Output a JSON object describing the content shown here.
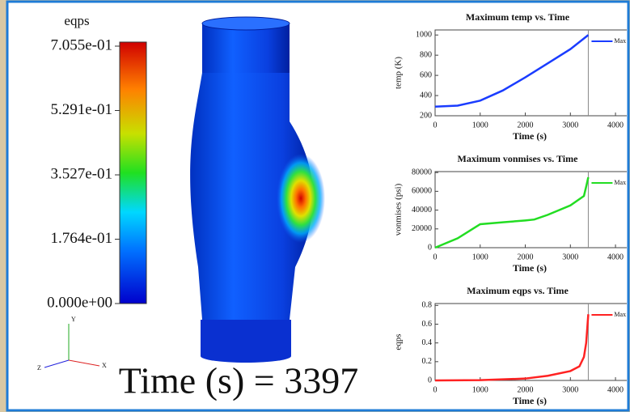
{
  "colorbar": {
    "title": "eqps",
    "lim": [
      0,
      0.7055
    ],
    "ticks": [
      {
        "value": 0.7055,
        "label": "7.055e-01"
      },
      {
        "value": 0.5291,
        "label": "5.291e-01"
      },
      {
        "value": 0.3527,
        "label": "3.527e-01"
      },
      {
        "value": 0.1764,
        "label": "1.764e-01"
      },
      {
        "value": 0,
        "label": "0.000e+00"
      }
    ]
  },
  "triad": {
    "x": "X",
    "y": "Y",
    "z": "Z"
  },
  "time_label": "Time (s) = 3397",
  "chart_data": [
    {
      "type": "line",
      "title": "Maximum temp vs. Time",
      "x_label": "Time (s)",
      "y_label": "temp (K)",
      "xlim": [
        0,
        4250
      ],
      "ylim": [
        200,
        1050
      ],
      "xticks": [
        0,
        1000,
        2000,
        3000,
        4000
      ],
      "yticks": [
        200,
        400,
        600,
        800,
        1000
      ],
      "marker_time": 3397,
      "x": [
        0,
        500,
        1000,
        1500,
        2000,
        2500,
        3000,
        3397
      ],
      "series": [
        {
          "name": "Max",
          "color": "#1a3cff",
          "values": [
            290,
            300,
            350,
            450,
            580,
            720,
            860,
            1000
          ]
        }
      ]
    },
    {
      "type": "line",
      "title": "Maximum vonmises vs. Time",
      "x_label": "Time (s)",
      "y_label": "vonmises (psi)",
      "xlim": [
        0,
        4250
      ],
      "ylim": [
        0,
        81000
      ],
      "xticks": [
        0,
        1000,
        2000,
        3000,
        4000
      ],
      "yticks": [
        0,
        20000,
        40000,
        60000,
        80000
      ],
      "marker_time": 3397,
      "x": [
        0,
        500,
        900,
        1000,
        1500,
        2000,
        2200,
        2500,
        3000,
        3300,
        3350,
        3397
      ],
      "series": [
        {
          "name": "Max",
          "color": "#22dd22",
          "values": [
            0,
            10000,
            22000,
            25000,
            27000,
            29000,
            30000,
            35000,
            45000,
            55000,
            65000,
            75000
          ]
        }
      ]
    },
    {
      "type": "line",
      "title": "Maximum eqps vs. Time",
      "x_label": "Time (s)",
      "y_label": "eqps",
      "xlim": [
        0,
        4250
      ],
      "ylim": [
        0,
        0.82
      ],
      "xticks": [
        0,
        1000,
        2000,
        3000,
        4000
      ],
      "yticks": [
        0,
        0.2,
        0.4,
        0.6,
        0.8
      ],
      "marker_time": 3397,
      "x": [
        0,
        1000,
        2000,
        2500,
        3000,
        3200,
        3300,
        3350,
        3397
      ],
      "series": [
        {
          "name": "Max",
          "color": "#ff2222",
          "values": [
            0,
            0.003,
            0.02,
            0.05,
            0.1,
            0.15,
            0.25,
            0.4,
            0.7055
          ]
        }
      ]
    }
  ]
}
